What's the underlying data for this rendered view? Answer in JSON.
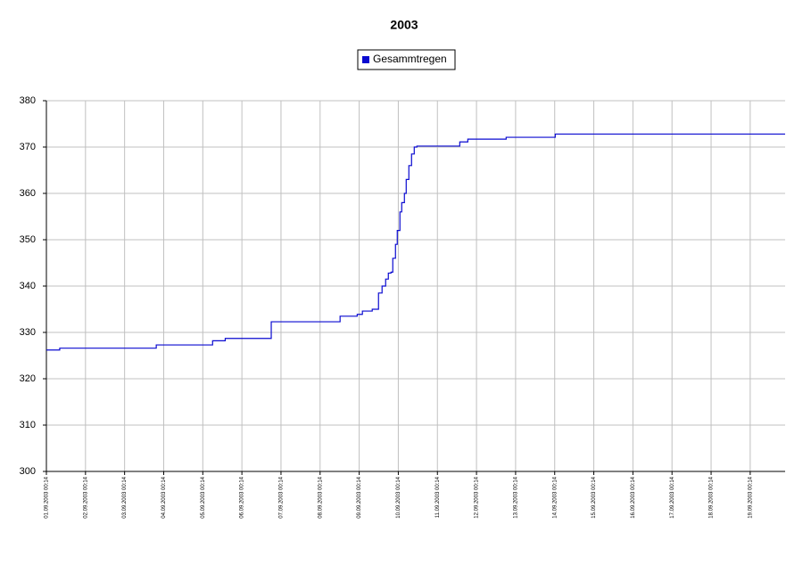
{
  "chart_data": {
    "type": "step-line",
    "title": "2003",
    "x": [
      "2003-09-01T00:14",
      "2003-09-01T08:25",
      "2003-09-03T19:40",
      "2003-09-05T06:15",
      "2003-09-05T14:00",
      "2003-09-06T18:15",
      "2003-09-08T12:30",
      "2003-09-08T23:00",
      "2003-09-09T02:12",
      "2003-09-09T08:14",
      "2003-09-09T12:05",
      "2003-09-09T14:16",
      "2003-09-09T16:28",
      "2003-09-09T18:07",
      "2003-09-09T19:45",
      "2003-09-09T20:51",
      "2003-09-09T22:30",
      "2003-09-09T23:36",
      "2003-09-10T01:14",
      "2003-09-10T02:20",
      "2003-09-10T03:59",
      "2003-09-10T05:05",
      "2003-09-10T06:43",
      "2003-09-10T08:22",
      "2003-09-10T10:01",
      "2003-09-10T11:39",
      "2003-09-11T13:58",
      "2003-09-11T18:54",
      "2003-09-12T18:26",
      "2003-09-14T00:34"
    ],
    "series": [
      {
        "name": "Gesammtregen",
        "color": "#0a0ad0",
        "values": [
          326.2,
          326.6,
          327.3,
          328.2,
          328.7,
          332.3,
          333.5,
          333.9,
          334.6,
          335,
          338.5,
          340,
          341.5,
          342.8,
          343,
          346,
          349,
          352,
          356,
          358,
          360,
          363,
          366,
          368.5,
          370,
          370.2,
          371.1,
          371.7,
          372.1,
          372.8
        ]
      }
    ],
    "xlim": [
      "2003-09-01T00:14",
      "2003-09-19T21:40"
    ],
    "xticks": [
      {
        "value": "2003-09-01T00:14",
        "label": "01.09.2003 00:14"
      },
      {
        "value": "2003-09-02T00:14",
        "label": "02.09.2003 00:14"
      },
      {
        "value": "2003-09-03T00:14",
        "label": "03.09.2003 00:14"
      },
      {
        "value": "2003-09-04T00:14",
        "label": "04.09.2003 00:14"
      },
      {
        "value": "2003-09-05T00:14",
        "label": "05.09.2003 00:14"
      },
      {
        "value": "2003-09-06T00:14",
        "label": "06.09.2003 00:14"
      },
      {
        "value": "2003-09-07T00:14",
        "label": "07.09.2003 00:14"
      },
      {
        "value": "2003-09-08T00:14",
        "label": "08.09.2003 00:14"
      },
      {
        "value": "2003-09-09T00:14",
        "label": "09.09.2003 00:14"
      },
      {
        "value": "2003-09-10T00:14",
        "label": "10.09.2003 00:14"
      },
      {
        "value": "2003-09-11T00:14",
        "label": "11.09.2003 00:14"
      },
      {
        "value": "2003-09-12T00:14",
        "label": "12.09.2003 00:14"
      },
      {
        "value": "2003-09-13T00:14",
        "label": "13.09.2003 00:14"
      },
      {
        "value": "2003-09-14T00:14",
        "label": "14.09.2003 00:14"
      },
      {
        "value": "2003-09-15T00:14",
        "label": "15.09.2003 00:14"
      },
      {
        "value": "2003-09-16T00:14",
        "label": "16.09.2003 00:14"
      },
      {
        "value": "2003-09-17T00:14",
        "label": "17.09.2003 00:14"
      },
      {
        "value": "2003-09-18T00:14",
        "label": "18.09.2003 00:14"
      },
      {
        "value": "2003-09-19T00:14",
        "label": "19.09.2003 00:14"
      }
    ],
    "ylim": [
      300,
      380
    ],
    "yticks": [
      300,
      310,
      320,
      330,
      340,
      350,
      360,
      370,
      380
    ],
    "grid": true,
    "legend": "top"
  }
}
